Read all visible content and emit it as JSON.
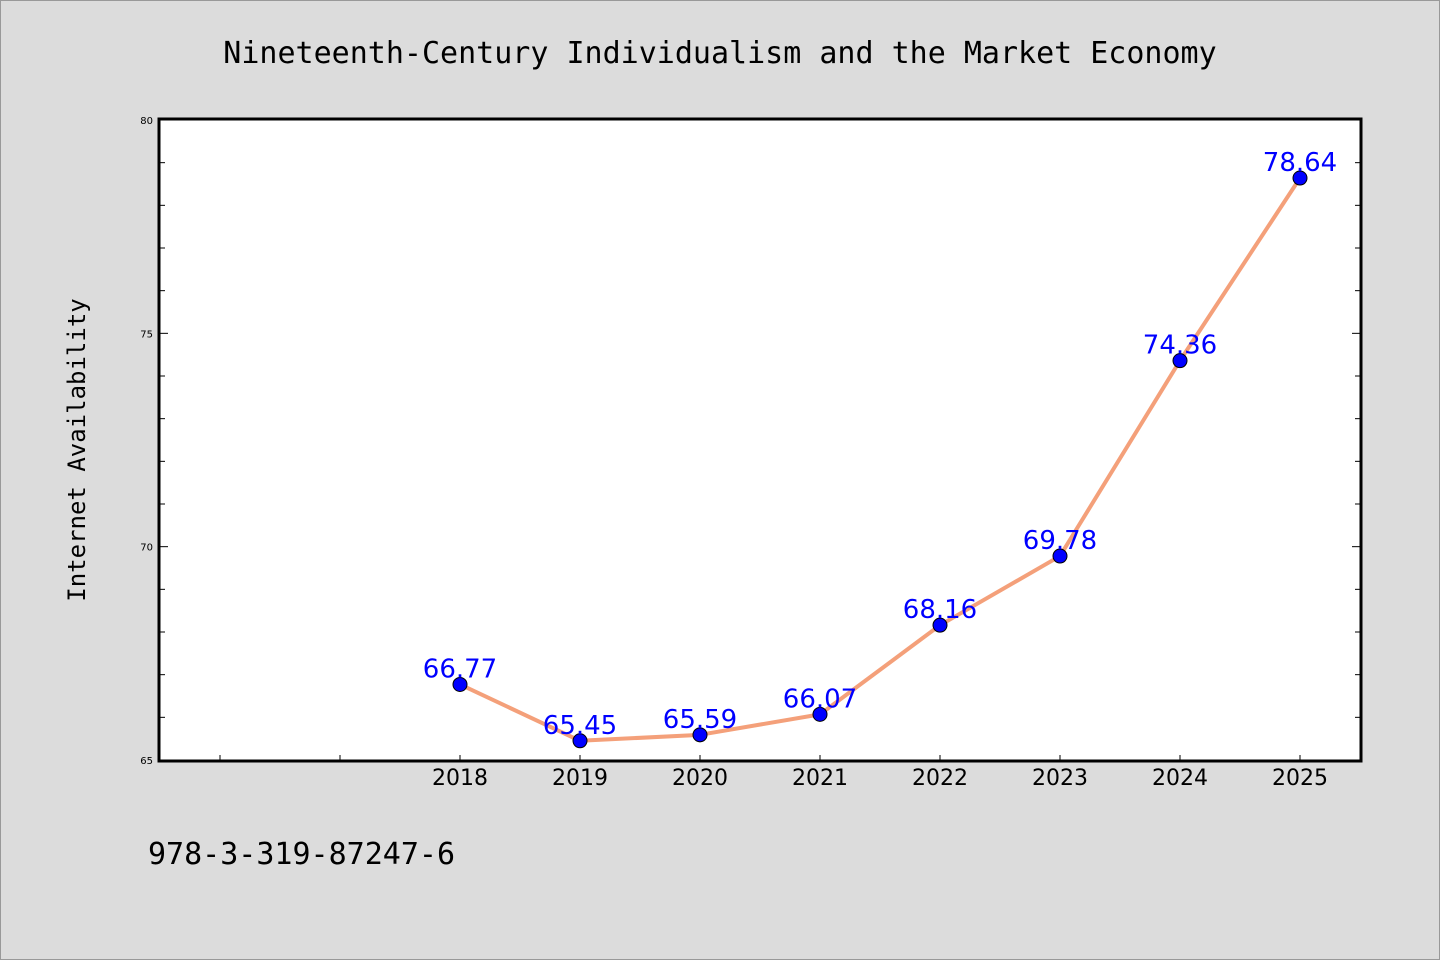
{
  "chart_data": {
    "type": "line",
    "title": "Nineteenth-Century Individualism and the Market Economy",
    "xlabel": "",
    "ylabel": "Internet Availability",
    "categories": [
      "2018",
      "2019",
      "2020",
      "2021",
      "2022",
      "2023",
      "2024",
      "2025"
    ],
    "series": [
      {
        "values": [
          66.77,
          65.45,
          65.59,
          66.07,
          68.16,
          69.78,
          74.36,
          78.64
        ],
        "labels": [
          "66.77",
          "65.45",
          "65.59",
          "66.07",
          "68.16",
          "69.78",
          "74.36",
          "78.64"
        ]
      }
    ],
    "ylim": [
      65,
      80
    ],
    "yticks": [
      "65",
      "70",
      "75",
      "80"
    ],
    "grid": false,
    "legend": "none",
    "colors": {
      "line": "#f4a07a",
      "marker": "#0000ff",
      "data_label": "#0000ff",
      "background": "#dcdcdc",
      "plot_background": "#ffffff"
    }
  },
  "footer_text": "978-3-319-87247-6"
}
